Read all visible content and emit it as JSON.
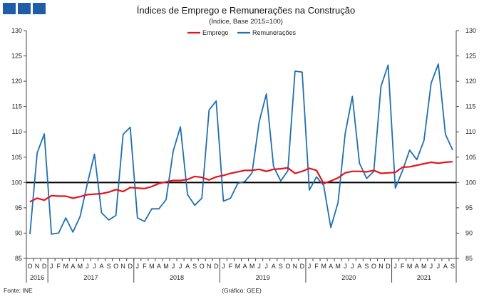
{
  "colors": {
    "emprego": "#e3141b",
    "remuneracoes": "#1f6fb2",
    "baseline": "#000000",
    "logo": "#1f5da8"
  },
  "footer": {
    "source": "Fonte: INE",
    "credit": "(Gráfico: GEE)"
  },
  "chart_data": {
    "type": "line",
    "title": "Índices de Emprego e Remunerações na Construção",
    "subtitle": "(Índice, Base 2015=100)",
    "xlabel": "",
    "ylabel": "",
    "ylim": [
      85,
      130
    ],
    "yticks": [
      85,
      90,
      95,
      100,
      105,
      110,
      115,
      120,
      125,
      130
    ],
    "reference_line": 100,
    "legend_position": "top-center",
    "month_labels": [
      "O",
      "N",
      "D",
      "J",
      "F",
      "M",
      "A",
      "M",
      "J",
      "J",
      "A",
      "S",
      "O",
      "N",
      "D",
      "J",
      "F",
      "M",
      "A",
      "M",
      "J",
      "J",
      "A",
      "S",
      "O",
      "N",
      "D",
      "J",
      "F",
      "M",
      "A",
      "M",
      "J",
      "J",
      "A",
      "S",
      "O",
      "N",
      "D",
      "J",
      "F",
      "M",
      "A",
      "M",
      "J",
      "J",
      "A",
      "S",
      "O",
      "N",
      "D",
      "J",
      "F",
      "M",
      "A",
      "M",
      "J",
      "J",
      "A",
      "S"
    ],
    "years": [
      {
        "label": "2016",
        "start": 0,
        "end": 2
      },
      {
        "label": "2017",
        "start": 3,
        "end": 14
      },
      {
        "label": "2018",
        "start": 15,
        "end": 26
      },
      {
        "label": "2019",
        "start": 27,
        "end": 38
      },
      {
        "label": "2020",
        "start": 39,
        "end": 50
      },
      {
        "label": "2021",
        "start": 51,
        "end": 59
      }
    ],
    "series": [
      {
        "name": "Emprego",
        "color": "#e3141b",
        "values": [
          96.2,
          96.9,
          96.5,
          97.4,
          97.3,
          97.3,
          96.9,
          97.2,
          97.6,
          97.7,
          97.8,
          98.1,
          98.6,
          98.2,
          99.0,
          98.9,
          98.8,
          99.2,
          99.8,
          100.1,
          100.4,
          100.4,
          100.6,
          101.2,
          101.0,
          100.5,
          101.1,
          101.4,
          101.8,
          102.1,
          102.4,
          102.4,
          102.6,
          102.2,
          102.6,
          102.7,
          102.9,
          101.8,
          102.2,
          102.8,
          102.4,
          99.8,
          100.3,
          100.9,
          101.9,
          102.2,
          102.2,
          102.1,
          102.4,
          101.8,
          101.9,
          102.0,
          103.0,
          103.1,
          103.4,
          103.7,
          104.0,
          103.8,
          104.0,
          104.1
        ]
      },
      {
        "name": "Remunerações",
        "color": "#1f6fb2",
        "values": [
          89.8,
          105.8,
          109.6,
          89.8,
          90.0,
          93.0,
          90.2,
          93.3,
          99.7,
          105.6,
          94.0,
          92.6,
          93.5,
          109.5,
          110.9,
          93.0,
          92.3,
          94.8,
          94.8,
          96.6,
          106.2,
          111.0,
          97.6,
          95.5,
          96.9,
          114.3,
          116.1,
          96.3,
          96.9,
          99.8,
          100.2,
          101.9,
          112.0,
          117.5,
          103.2,
          100.3,
          102.3,
          122.0,
          121.8,
          98.5,
          101.1,
          99.4,
          91.1,
          96.0,
          109.6,
          117.0,
          103.8,
          100.8,
          102.2,
          119.0,
          123.2,
          98.9,
          102.3,
          106.4,
          104.5,
          108.3,
          119.6,
          123.4,
          109.5,
          106.4
        ]
      }
    ]
  }
}
